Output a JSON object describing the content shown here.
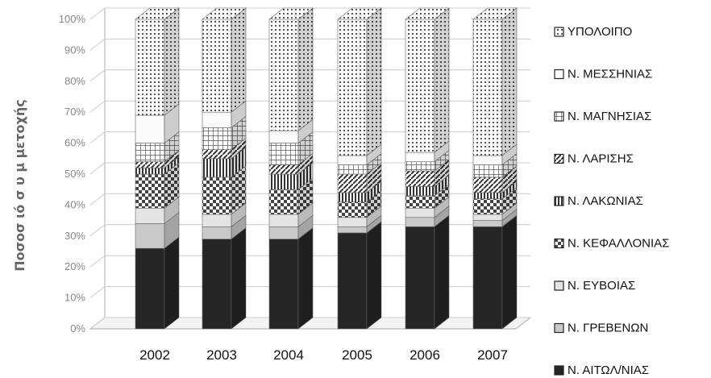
{
  "chart_data": {
    "type": "bar",
    "stacked": true,
    "three_d": true,
    "ylabel": "Ποσοσ ιό σ υ μ μετοχής",
    "xlabel": "",
    "ylim": [
      0,
      100
    ],
    "yticks": [
      "0%",
      "10%",
      "20%",
      "30%",
      "40%",
      "50%",
      "60%",
      "70%",
      "80%",
      "90%",
      "100%"
    ],
    "grid": true,
    "legend_position": "right",
    "categories": [
      "2002",
      "2003",
      "2004",
      "2005",
      "2006",
      "2007"
    ],
    "series": [
      {
        "name": "Ν. ΑΙΤΩΛ/ΝΙΑΣ",
        "values": [
          26,
          29,
          29,
          31,
          33,
          33
        ],
        "pattern": "solid-dark"
      },
      {
        "name": "Ν. ΓΡΕΒΕΝΩΝ",
        "values": [
          8,
          4,
          4,
          2,
          3,
          2
        ],
        "pattern": "light-gray"
      },
      {
        "name": "Ν. ΕΥΒΟΙΑΣ",
        "values": [
          5,
          4,
          4,
          3,
          3,
          2
        ],
        "pattern": "very-light"
      },
      {
        "name": "Ν. ΚΕΦΑΛΛΟΝΙΑΣ",
        "values": [
          11,
          12,
          8,
          5,
          4,
          5
        ],
        "pattern": "checker"
      },
      {
        "name": "Ν. ΛΑΚΩΝΙΑΣ",
        "values": [
          2,
          6,
          5,
          3,
          3,
          2
        ],
        "pattern": "vertical-lines"
      },
      {
        "name": "Ν. ΛΑΡΙΣΗΣ",
        "values": [
          2,
          3,
          3,
          6,
          5,
          5
        ],
        "pattern": "diagonal"
      },
      {
        "name": "Ν. ΜΑΓΝΗΣΙΑΣ",
        "values": [
          6,
          7,
          7,
          3,
          3,
          4
        ],
        "pattern": "grid"
      },
      {
        "name": "Ν. ΜΕΣΣΗΝΙΑΣ",
        "values": [
          9,
          5,
          4,
          3,
          3,
          3
        ],
        "pattern": "white"
      },
      {
        "name": "ΥΠΟΛΟΙΠΟ",
        "values": [
          31,
          30,
          36,
          44,
          43,
          44
        ],
        "pattern": "dots"
      }
    ]
  }
}
